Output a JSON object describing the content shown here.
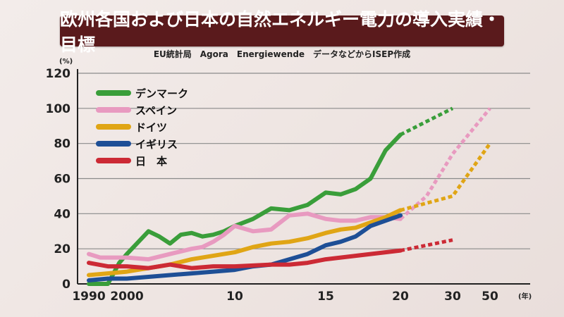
{
  "header": {
    "title": "欧州各国および日本の自然エネルギー電力の導入実績・目標",
    "source": "EU統計局　Agora　Energiewende　データなどからISEP作成"
  },
  "chart_data": {
    "type": "line",
    "y_unit": "(%)",
    "x_unit": "(年)",
    "ylim": [
      0,
      120
    ],
    "y_ticks": [
      0,
      20,
      40,
      60,
      80,
      100,
      120
    ],
    "x_tick_labels": [
      {
        "label": "1990",
        "year": 1990
      },
      {
        "label": "2000",
        "year": 2000
      },
      {
        "label": "10",
        "year": 2010
      },
      {
        "label": "15",
        "year": 2015
      },
      {
        "label": "20",
        "year": 2020
      },
      {
        "label": "30",
        "year": 2030
      },
      {
        "label": "50",
        "year": 2050
      }
    ],
    "grid": true,
    "legend_position": "top-left",
    "series": [
      {
        "name": "デンマーク",
        "color": "#3a9e3a",
        "actual": [
          [
            1990,
            0
          ],
          [
            1995,
            0
          ],
          [
            1998,
            12
          ],
          [
            2000,
            17
          ],
          [
            2002,
            30
          ],
          [
            2003,
            27
          ],
          [
            2004,
            23
          ],
          [
            2005,
            28
          ],
          [
            2006,
            29
          ],
          [
            2007,
            27
          ],
          [
            2008,
            28
          ],
          [
            2009,
            30
          ],
          [
            2010,
            33
          ],
          [
            2011,
            37
          ],
          [
            2012,
            43
          ],
          [
            2013,
            42
          ],
          [
            2014,
            45
          ],
          [
            2015,
            52
          ],
          [
            2016,
            51
          ],
          [
            2017,
            54
          ],
          [
            2018,
            60
          ],
          [
            2019,
            76
          ],
          [
            2020,
            85
          ]
        ],
        "target": [
          [
            2020,
            85
          ],
          [
            2030,
            100
          ]
        ]
      },
      {
        "name": "スペイン",
        "color": "#e89ac0",
        "actual": [
          [
            1990,
            17
          ],
          [
            1993,
            15
          ],
          [
            1996,
            15
          ],
          [
            2000,
            15
          ],
          [
            2002,
            14
          ],
          [
            2004,
            17
          ],
          [
            2006,
            20
          ],
          [
            2007,
            21
          ],
          [
            2008,
            24
          ],
          [
            2009,
            28
          ],
          [
            2010,
            33
          ],
          [
            2011,
            30
          ],
          [
            2012,
            31
          ],
          [
            2013,
            39
          ],
          [
            2014,
            40
          ],
          [
            2015,
            37
          ],
          [
            2016,
            36
          ],
          [
            2017,
            36
          ],
          [
            2018,
            38
          ],
          [
            2019,
            38
          ],
          [
            2020,
            37
          ]
        ],
        "target": [
          [
            2020,
            37
          ],
          [
            2025,
            50
          ],
          [
            2030,
            74
          ],
          [
            2050,
            100
          ]
        ]
      },
      {
        "name": "ドイツ",
        "color": "#e0a515",
        "actual": [
          [
            1990,
            5
          ],
          [
            1995,
            6
          ],
          [
            2000,
            7
          ],
          [
            2002,
            9
          ],
          [
            2004,
            11
          ],
          [
            2006,
            14
          ],
          [
            2008,
            16
          ],
          [
            2010,
            18
          ],
          [
            2011,
            21
          ],
          [
            2012,
            23
          ],
          [
            2013,
            24
          ],
          [
            2014,
            26
          ],
          [
            2015,
            29
          ],
          [
            2016,
            31
          ],
          [
            2017,
            32
          ],
          [
            2018,
            35
          ],
          [
            2019,
            38
          ],
          [
            2020,
            42
          ]
        ],
        "target": [
          [
            2020,
            42
          ],
          [
            2030,
            50
          ],
          [
            2050,
            80
          ]
        ]
      },
      {
        "name": "イギリス",
        "color": "#1e4f96",
        "actual": [
          [
            1990,
            2
          ],
          [
            1995,
            3
          ],
          [
            2000,
            3
          ],
          [
            2002,
            4
          ],
          [
            2004,
            5
          ],
          [
            2006,
            6
          ],
          [
            2008,
            7
          ],
          [
            2010,
            8
          ],
          [
            2011,
            10
          ],
          [
            2012,
            11
          ],
          [
            2013,
            14
          ],
          [
            2014,
            17
          ],
          [
            2015,
            22
          ],
          [
            2016,
            24
          ],
          [
            2017,
            27
          ],
          [
            2018,
            33
          ],
          [
            2019,
            36
          ],
          [
            2020,
            39
          ]
        ],
        "target": []
      },
      {
        "name": "日　本",
        "color": "#cc2a35",
        "actual": [
          [
            1990,
            12
          ],
          [
            1995,
            10
          ],
          [
            2000,
            10
          ],
          [
            2002,
            9
          ],
          [
            2004,
            11
          ],
          [
            2006,
            9
          ],
          [
            2008,
            10
          ],
          [
            2010,
            10
          ],
          [
            2012,
            11
          ],
          [
            2013,
            11
          ],
          [
            2014,
            12
          ],
          [
            2015,
            14
          ],
          [
            2016,
            15
          ],
          [
            2017,
            16
          ],
          [
            2018,
            17
          ],
          [
            2019,
            18
          ],
          [
            2020,
            19
          ]
        ],
        "target": [
          [
            2020,
            19
          ],
          [
            2025,
            22
          ],
          [
            2030,
            25
          ]
        ]
      }
    ]
  }
}
